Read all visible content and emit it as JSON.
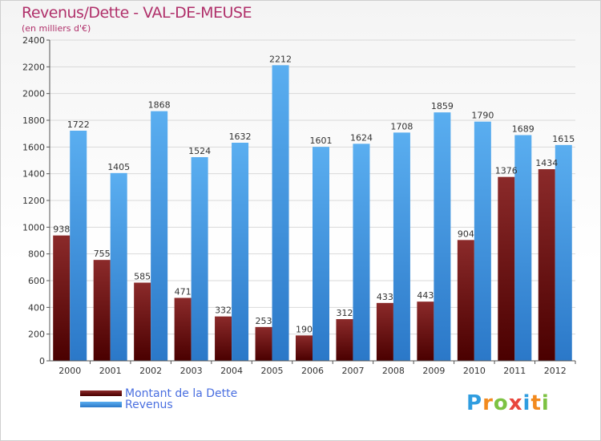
{
  "title": "Revenus/Dette - VAL-DE-MEUSE",
  "subtitle": "(en milliers d'€)",
  "colors": {
    "dette_top": "#8b2a2a",
    "dette_bottom": "#4a0000",
    "revenus_top": "#5aaef0",
    "revenus_bottom": "#2b78c8",
    "title": "#b0306a",
    "legend_text": "#4a6fe0"
  },
  "legend": {
    "dette": "Montant de la Dette",
    "revenus": "Revenus"
  },
  "logo": {
    "letters": [
      "P",
      "r",
      "o",
      "x",
      "i",
      "t",
      "i"
    ],
    "colors": [
      "#2f9de0",
      "#f28a1e",
      "#7dc242",
      "#e8463c",
      "#2f9de0",
      "#f28a1e",
      "#7dc242"
    ]
  },
  "chart_data": {
    "type": "bar",
    "title": "Revenus/Dette - VAL-DE-MEUSE",
    "subtitle": "(en milliers d'€)",
    "categories": [
      "2000",
      "2001",
      "2002",
      "2003",
      "2004",
      "2005",
      "2006",
      "2007",
      "2008",
      "2009",
      "2010",
      "2011",
      "2012"
    ],
    "series": [
      {
        "name": "Montant de la Dette",
        "values": [
          938,
          755,
          585,
          471,
          332,
          253,
          190,
          312,
          433,
          443,
          904,
          1376,
          1434
        ]
      },
      {
        "name": "Revenus",
        "values": [
          1722,
          1405,
          1868,
          1524,
          1632,
          2212,
          1601,
          1624,
          1708,
          1859,
          1790,
          1689,
          1615
        ]
      }
    ],
    "ylim": [
      0,
      2400
    ],
    "yticks": [
      0,
      200,
      400,
      600,
      800,
      1000,
      1200,
      1400,
      1600,
      1800,
      2000,
      2200,
      2400
    ],
    "grid": true,
    "legend_position": "bottom-left"
  }
}
